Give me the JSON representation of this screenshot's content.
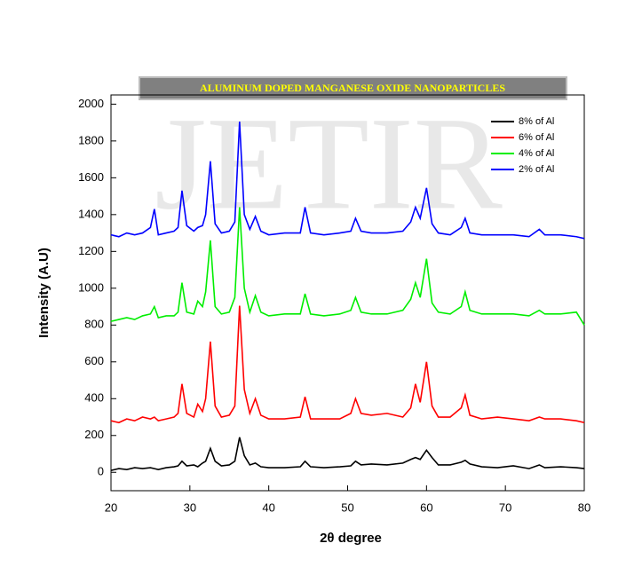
{
  "chart_data": {
    "type": "line",
    "title": "ALUMINUM DOPED MANGANESE OXIDE NANOPARTICLES",
    "watermark": "JETIR",
    "x_label": "2θ degree",
    "y_label": "Intensity (A.U)",
    "xlim": [
      20,
      80
    ],
    "xticks": [
      20,
      30,
      40,
      50,
      60,
      70,
      80
    ],
    "ylim": [
      -100,
      2050
    ],
    "yticks": [
      0,
      200,
      400,
      600,
      800,
      1000,
      1200,
      1400,
      1600,
      1800,
      2000
    ],
    "legend": "upper right",
    "x": [
      20,
      21,
      22,
      23,
      24,
      25,
      25.5,
      26,
      27,
      28,
      28.5,
      29,
      29.6,
      30.5,
      31,
      31.6,
      32,
      32.6,
      33.2,
      34,
      35,
      35.7,
      36.3,
      36.9,
      37.6,
      38.3,
      39,
      40,
      42,
      44,
      44.6,
      45.3,
      47,
      49,
      50.4,
      51,
      51.7,
      53,
      55,
      57,
      58,
      58.6,
      59.2,
      60,
      60.7,
      61.5,
      63,
      64.4,
      64.9,
      65.5,
      67,
      69,
      71,
      73,
      74.3,
      75,
      77,
      79,
      80
    ],
    "series": [
      {
        "name": "8% of Al",
        "color": "#000000",
        "values": [
          10,
          20,
          15,
          25,
          20,
          25,
          20,
          15,
          25,
          30,
          35,
          60,
          35,
          40,
          30,
          50,
          60,
          130,
          60,
          35,
          40,
          60,
          190,
          90,
          40,
          50,
          30,
          25,
          25,
          30,
          60,
          30,
          25,
          30,
          35,
          60,
          40,
          45,
          40,
          50,
          70,
          80,
          70,
          120,
          80,
          40,
          40,
          55,
          65,
          45,
          30,
          25,
          35,
          20,
          40,
          25,
          30,
          25,
          20
        ]
      },
      {
        "name": "6% of Al",
        "color": "#ff0000",
        "values": [
          280,
          270,
          290,
          280,
          300,
          290,
          300,
          280,
          290,
          300,
          320,
          480,
          320,
          300,
          370,
          330,
          400,
          710,
          360,
          300,
          310,
          360,
          905,
          450,
          320,
          400,
          310,
          290,
          290,
          300,
          410,
          290,
          290,
          290,
          320,
          400,
          320,
          310,
          320,
          300,
          350,
          480,
          380,
          600,
          360,
          300,
          300,
          350,
          420,
          310,
          290,
          300,
          290,
          280,
          300,
          290,
          290,
          280,
          270
        ]
      },
      {
        "name": "4% of Al",
        "color": "#00ee00",
        "values": [
          820,
          830,
          840,
          830,
          850,
          860,
          900,
          840,
          850,
          850,
          870,
          1030,
          870,
          860,
          930,
          900,
          980,
          1260,
          900,
          860,
          870,
          950,
          1440,
          1000,
          870,
          960,
          870,
          850,
          860,
          860,
          970,
          860,
          850,
          860,
          880,
          950,
          870,
          860,
          860,
          880,
          940,
          1030,
          950,
          1160,
          920,
          870,
          860,
          900,
          980,
          880,
          860,
          860,
          860,
          850,
          880,
          860,
          860,
          870,
          800
        ]
      },
      {
        "name": "2% of Al",
        "color": "#0000ff",
        "values": [
          1290,
          1280,
          1300,
          1290,
          1300,
          1330,
          1430,
          1290,
          1300,
          1310,
          1330,
          1530,
          1340,
          1310,
          1330,
          1340,
          1400,
          1690,
          1350,
          1300,
          1310,
          1360,
          1905,
          1400,
          1320,
          1390,
          1310,
          1290,
          1300,
          1300,
          1440,
          1300,
          1290,
          1300,
          1310,
          1380,
          1310,
          1300,
          1300,
          1310,
          1360,
          1440,
          1380,
          1545,
          1350,
          1300,
          1290,
          1330,
          1380,
          1300,
          1290,
          1290,
          1290,
          1280,
          1320,
          1290,
          1290,
          1280,
          1270
        ]
      }
    ]
  }
}
